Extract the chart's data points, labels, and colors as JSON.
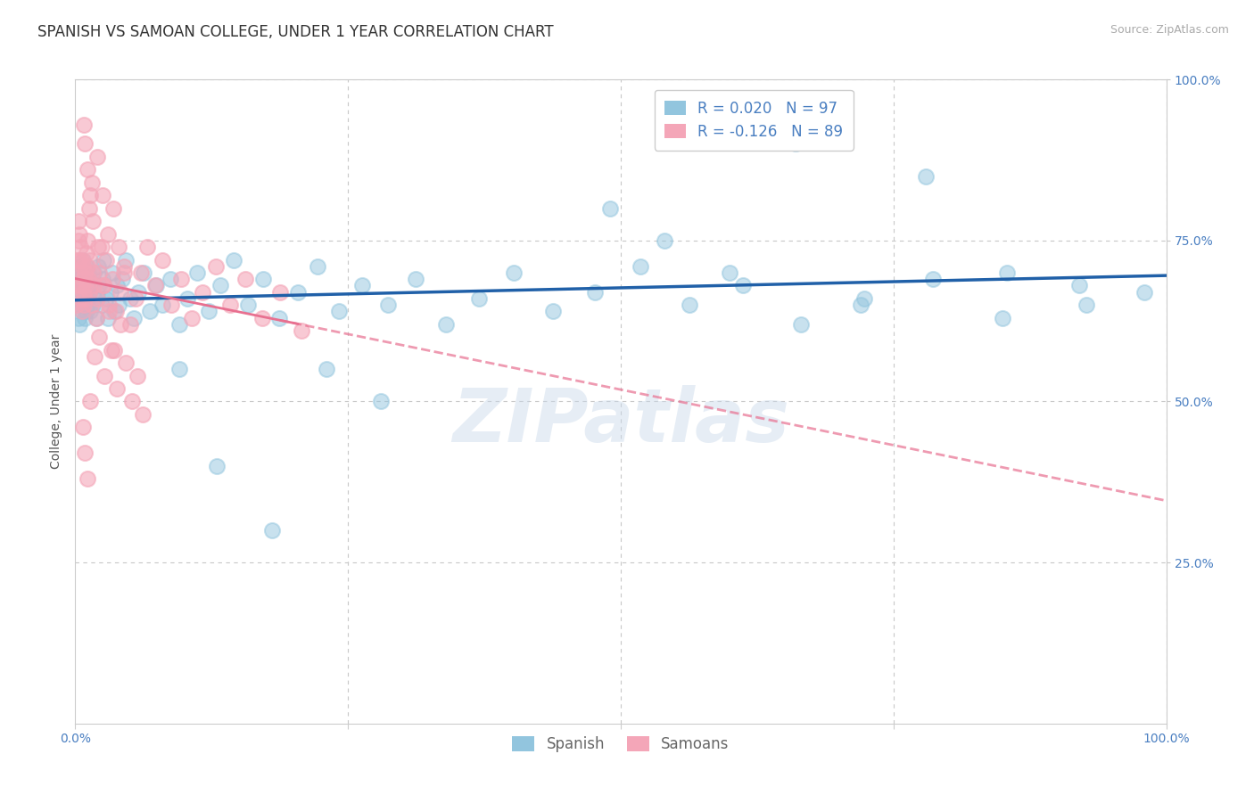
{
  "title": "SPANISH VS SAMOAN COLLEGE, UNDER 1 YEAR CORRELATION CHART",
  "source_text": "Source: ZipAtlas.com",
  "ylabel": "College, Under 1 year",
  "xlim": [
    0.0,
    1.0
  ],
  "ylim": [
    0.0,
    1.0
  ],
  "spanish_R": 0.02,
  "spanish_N": 97,
  "samoan_R": -0.126,
  "samoan_N": 89,
  "spanish_color": "#92c5de",
  "samoan_color": "#f4a6b8",
  "spanish_line_color": "#2060a8",
  "samoan_line_color": "#e87090",
  "watermark": "ZIPatlas",
  "watermark_color": "#c8d8ea",
  "grid_color": "#c8c8c8",
  "background_color": "#ffffff",
  "title_fontsize": 12,
  "axis_label_fontsize": 10,
  "tick_fontsize": 10,
  "legend_fontsize": 12,
  "tick_color": "#4a7fc1",
  "spanish_x": [
    0.002,
    0.003,
    0.003,
    0.004,
    0.004,
    0.005,
    0.005,
    0.005,
    0.006,
    0.006,
    0.006,
    0.007,
    0.007,
    0.007,
    0.008,
    0.008,
    0.009,
    0.009,
    0.01,
    0.01,
    0.01,
    0.011,
    0.011,
    0.012,
    0.012,
    0.013,
    0.014,
    0.015,
    0.016,
    0.017,
    0.018,
    0.019,
    0.02,
    0.021,
    0.022,
    0.024,
    0.025,
    0.026,
    0.028,
    0.03,
    0.032,
    0.034,
    0.036,
    0.038,
    0.04,
    0.043,
    0.046,
    0.05,
    0.054,
    0.058,
    0.063,
    0.068,
    0.074,
    0.08,
    0.087,
    0.095,
    0.103,
    0.112,
    0.122,
    0.133,
    0.145,
    0.158,
    0.172,
    0.187,
    0.204,
    0.222,
    0.242,
    0.263,
    0.287,
    0.312,
    0.34,
    0.37,
    0.402,
    0.438,
    0.476,
    0.518,
    0.563,
    0.612,
    0.665,
    0.723,
    0.786,
    0.854,
    0.927,
    0.49,
    0.54,
    0.6,
    0.66,
    0.72,
    0.78,
    0.85,
    0.92,
    0.98,
    0.095,
    0.13,
    0.18,
    0.23,
    0.28
  ],
  "spanish_y": [
    0.65,
    0.63,
    0.68,
    0.7,
    0.62,
    0.66,
    0.69,
    0.71,
    0.64,
    0.67,
    0.7,
    0.65,
    0.68,
    0.72,
    0.66,
    0.69,
    0.63,
    0.67,
    0.64,
    0.68,
    0.71,
    0.65,
    0.69,
    0.66,
    0.7,
    0.67,
    0.64,
    0.68,
    0.65,
    0.7,
    0.66,
    0.63,
    0.67,
    0.71,
    0.68,
    0.65,
    0.69,
    0.72,
    0.66,
    0.63,
    0.67,
    0.7,
    0.64,
    0.68,
    0.65,
    0.69,
    0.72,
    0.66,
    0.63,
    0.67,
    0.7,
    0.64,
    0.68,
    0.65,
    0.69,
    0.62,
    0.66,
    0.7,
    0.64,
    0.68,
    0.72,
    0.65,
    0.69,
    0.63,
    0.67,
    0.71,
    0.64,
    0.68,
    0.65,
    0.69,
    0.62,
    0.66,
    0.7,
    0.64,
    0.67,
    0.71,
    0.65,
    0.68,
    0.62,
    0.66,
    0.69,
    0.7,
    0.65,
    0.8,
    0.75,
    0.7,
    0.9,
    0.65,
    0.85,
    0.63,
    0.68,
    0.67,
    0.55,
    0.4,
    0.3,
    0.55,
    0.5
  ],
  "samoan_x": [
    0.001,
    0.002,
    0.002,
    0.003,
    0.003,
    0.003,
    0.004,
    0.004,
    0.004,
    0.005,
    0.005,
    0.005,
    0.006,
    0.006,
    0.006,
    0.007,
    0.007,
    0.008,
    0.008,
    0.009,
    0.009,
    0.01,
    0.01,
    0.011,
    0.011,
    0.012,
    0.013,
    0.014,
    0.015,
    0.016,
    0.017,
    0.019,
    0.02,
    0.022,
    0.024,
    0.026,
    0.028,
    0.031,
    0.034,
    0.037,
    0.041,
    0.045,
    0.05,
    0.055,
    0.06,
    0.066,
    0.073,
    0.08,
    0.088,
    0.097,
    0.107,
    0.117,
    0.129,
    0.142,
    0.156,
    0.171,
    0.188,
    0.207,
    0.013,
    0.015,
    0.02,
    0.025,
    0.03,
    0.035,
    0.04,
    0.045,
    0.018,
    0.022,
    0.027,
    0.033,
    0.038,
    0.009,
    0.011,
    0.014,
    0.008,
    0.016,
    0.021,
    0.026,
    0.031,
    0.036,
    0.041,
    0.046,
    0.052,
    0.057,
    0.062,
    0.007,
    0.009,
    0.011,
    0.014
  ],
  "samoan_y": [
    0.65,
    0.68,
    0.72,
    0.7,
    0.75,
    0.78,
    0.68,
    0.72,
    0.76,
    0.66,
    0.7,
    0.74,
    0.64,
    0.68,
    0.72,
    0.67,
    0.71,
    0.65,
    0.69,
    0.66,
    0.7,
    0.68,
    0.73,
    0.71,
    0.75,
    0.69,
    0.67,
    0.72,
    0.65,
    0.7,
    0.68,
    0.63,
    0.66,
    0.7,
    0.74,
    0.68,
    0.72,
    0.65,
    0.69,
    0.64,
    0.67,
    0.71,
    0.62,
    0.66,
    0.7,
    0.74,
    0.68,
    0.72,
    0.65,
    0.69,
    0.63,
    0.67,
    0.71,
    0.65,
    0.69,
    0.63,
    0.67,
    0.61,
    0.8,
    0.84,
    0.88,
    0.82,
    0.76,
    0.8,
    0.74,
    0.7,
    0.57,
    0.6,
    0.54,
    0.58,
    0.52,
    0.9,
    0.86,
    0.82,
    0.93,
    0.78,
    0.74,
    0.68,
    0.64,
    0.58,
    0.62,
    0.56,
    0.5,
    0.54,
    0.48,
    0.46,
    0.42,
    0.38,
    0.5
  ]
}
